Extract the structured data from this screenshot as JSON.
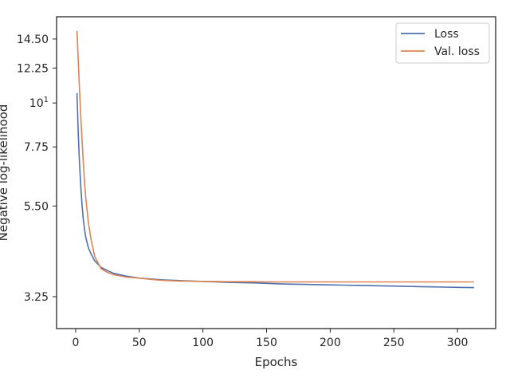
{
  "chart_data": {
    "type": "line",
    "xlabel": "Epochs",
    "ylabel": "Negative log-likelihood",
    "yscale": "log",
    "xlim": [
      -15,
      330
    ],
    "ylim": [
      2.7,
      16.5
    ],
    "x_ticks": [
      0,
      50,
      100,
      150,
      200,
      250,
      300
    ],
    "x_tick_labels": [
      "0",
      "50",
      "100",
      "150",
      "200",
      "250",
      "300"
    ],
    "y_ticks": [
      3.25,
      5.5,
      7.75,
      10,
      12.25,
      14.5
    ],
    "y_tick_labels": [
      "3.25",
      "5.50",
      "7.75",
      "10",
      "12.25",
      "14.50"
    ],
    "y_tick_superscripts": [
      "",
      "",
      "",
      "1",
      "",
      ""
    ],
    "grid": false,
    "legend_position": "top-right",
    "series": [
      {
        "name": "Loss",
        "color": "#4c72b0",
        "x": [
          1,
          2,
          3,
          4,
          5,
          6,
          7,
          8,
          10,
          12,
          15,
          20,
          25,
          30,
          40,
          50,
          60,
          70,
          80,
          90,
          100,
          110,
          120,
          130,
          140,
          150,
          160,
          170,
          180,
          190,
          200,
          210,
          220,
          230,
          240,
          250,
          260,
          270,
          280,
          290,
          300,
          310,
          313
        ],
        "y": [
          10.6,
          8.4,
          7.1,
          6.2,
          5.55,
          5.1,
          4.8,
          4.58,
          4.32,
          4.17,
          4.0,
          3.85,
          3.78,
          3.72,
          3.66,
          3.62,
          3.6,
          3.58,
          3.57,
          3.56,
          3.55,
          3.54,
          3.53,
          3.525,
          3.52,
          3.51,
          3.5,
          3.495,
          3.49,
          3.485,
          3.48,
          3.475,
          3.47,
          3.465,
          3.46,
          3.455,
          3.45,
          3.445,
          3.44,
          3.435,
          3.43,
          3.425,
          3.425
        ]
      },
      {
        "name": "Val. loss",
        "color": "#dd8452",
        "x": [
          1,
          2,
          3,
          4,
          5,
          6,
          7,
          8,
          10,
          12,
          15,
          20,
          25,
          30,
          40,
          50,
          60,
          70,
          80,
          90,
          100,
          110,
          120,
          130,
          140,
          150,
          160,
          170,
          180,
          190,
          200,
          210,
          220,
          230,
          240,
          250,
          260,
          270,
          280,
          290,
          300,
          310,
          313
        ],
        "y": [
          15.2,
          12.8,
          10.9,
          9.3,
          8.1,
          7.1,
          6.3,
          5.75,
          5.0,
          4.55,
          4.1,
          3.82,
          3.74,
          3.69,
          3.64,
          3.62,
          3.59,
          3.57,
          3.56,
          3.555,
          3.55,
          3.55,
          3.545,
          3.545,
          3.545,
          3.54,
          3.54,
          3.54,
          3.54,
          3.54,
          3.54,
          3.54,
          3.54,
          3.54,
          3.54,
          3.54,
          3.54,
          3.54,
          3.54,
          3.54,
          3.54,
          3.54,
          3.54
        ]
      }
    ]
  }
}
